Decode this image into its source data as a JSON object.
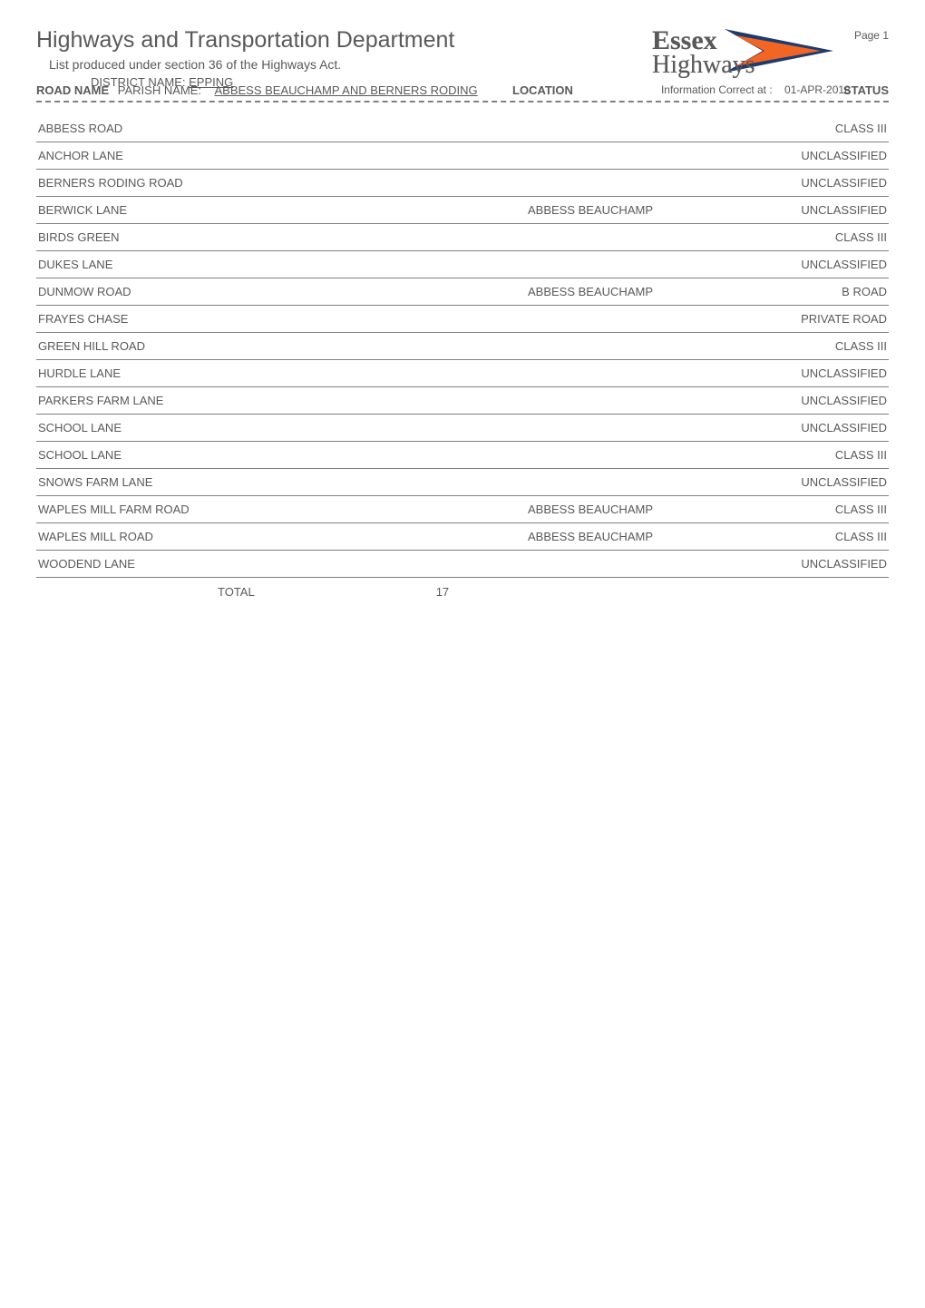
{
  "header": {
    "title": "Highways and Transportation Department",
    "subtitle": "List produced under section 36 of the Highways Act.",
    "district_label": "DISTRICT NAME:",
    "district_value": "EPPING",
    "parish_label": "PARISH NAME:",
    "parish_value": "ABBESS BEAUCHAMP AND BERNERS RODING",
    "info_correct_label": "Information Correct at :",
    "info_correct_value": "01-APR-2018",
    "page_label": "Page 1"
  },
  "logo": {
    "line1": "Essex",
    "line2": "Highways",
    "text_color": "#595959",
    "arrow_outer": "#1f3a6e",
    "arrow_inner": "#f26522"
  },
  "columns": {
    "road": "ROAD NAME",
    "location": "LOCATION",
    "status": "STATUS"
  },
  "rows": [
    {
      "road": "ABBESS ROAD",
      "location": "",
      "status": "CLASS III"
    },
    {
      "road": "ANCHOR LANE",
      "location": "",
      "status": "UNCLASSIFIED"
    },
    {
      "road": "BERNERS RODING ROAD",
      "location": "",
      "status": "UNCLASSIFIED"
    },
    {
      "road": "BERWICK LANE",
      "location": "ABBESS BEAUCHAMP",
      "status": "UNCLASSIFIED"
    },
    {
      "road": "BIRDS GREEN",
      "location": "",
      "status": "CLASS III"
    },
    {
      "road": "DUKES LANE",
      "location": "",
      "status": "UNCLASSIFIED"
    },
    {
      "road": "DUNMOW ROAD",
      "location": "ABBESS BEAUCHAMP",
      "status": "B ROAD"
    },
    {
      "road": "FRAYES CHASE",
      "location": "",
      "status": "PRIVATE ROAD"
    },
    {
      "road": "GREEN HILL ROAD",
      "location": "",
      "status": "CLASS III"
    },
    {
      "road": "HURDLE LANE",
      "location": "",
      "status": "UNCLASSIFIED"
    },
    {
      "road": "PARKERS FARM LANE",
      "location": "",
      "status": "UNCLASSIFIED"
    },
    {
      "road": "SCHOOL LANE",
      "location": "",
      "status": "UNCLASSIFIED"
    },
    {
      "road": "SCHOOL LANE",
      "location": "",
      "status": "CLASS III"
    },
    {
      "road": "SNOWS FARM LANE",
      "location": "",
      "status": "UNCLASSIFIED"
    },
    {
      "road": "WAPLES MILL FARM ROAD",
      "location": "ABBESS BEAUCHAMP",
      "status": "CLASS III"
    },
    {
      "road": "WAPLES MILL ROAD",
      "location": "ABBESS BEAUCHAMP",
      "status": "CLASS III"
    },
    {
      "road": "WOODEND LANE",
      "location": "",
      "status": "UNCLASSIFIED"
    }
  ],
  "total": {
    "label": "TOTAL",
    "value": "17"
  },
  "style": {
    "text_color": "#595959",
    "rule_color": "#808080",
    "dash_color": "#808080",
    "background": "#ffffff",
    "title_fontsize": 25,
    "body_fontsize": 13,
    "small_fontsize": 12
  }
}
